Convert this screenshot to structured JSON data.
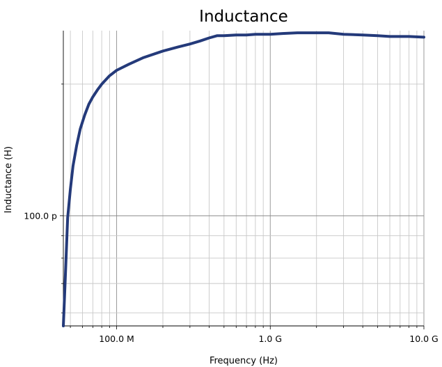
{
  "chart_data": {
    "type": "line",
    "title": "Inductance",
    "xlabel": "Frequency (Hz)",
    "ylabel": "Inductance (H)",
    "x_scale": "log",
    "y_scale": "log",
    "xlim": [
      45000000,
      10000000000
    ],
    "ylim": [
      5.6e-11,
      2.65e-10
    ],
    "grid": true,
    "x_ticks": [
      {
        "value": 100000000,
        "label": "100.0 M"
      },
      {
        "value": 1000000000,
        "label": "1.0 G"
      },
      {
        "value": 10000000000,
        "label": "10.0 G"
      }
    ],
    "y_ticks": [
      {
        "value": 1e-10,
        "label": "100.0 p"
      }
    ],
    "series": [
      {
        "color": "#243a7a",
        "x": [
          45000000,
          46500000,
          48000000,
          50000000,
          52000000,
          55000000,
          58000000,
          62000000,
          66000000,
          70000000,
          75000000,
          80000000,
          90000000,
          100000000,
          120000000,
          150000000,
          200000000,
          250000000,
          300000000,
          350000000,
          400000000,
          450000000,
          500000000,
          600000000,
          700000000,
          800000000,
          1000000000,
          1200000000,
          1500000000,
          1800000000,
          2000000000,
          2400000000,
          3000000000,
          4000000000,
          5000000000,
          6000000000,
          7000000000,
          8000000000,
          10000000000
        ],
        "y": [
          5.6e-11,
          7.4e-11,
          9.9e-11,
          1.15e-10,
          1.3e-10,
          1.45e-10,
          1.58e-10,
          1.7e-10,
          1.8e-10,
          1.87e-10,
          1.94e-10,
          2e-10,
          2.09e-10,
          2.15e-10,
          2.22e-10,
          2.3e-10,
          2.38e-10,
          2.43e-10,
          2.47e-10,
          2.51e-10,
          2.55e-10,
          2.58e-10,
          2.58e-10,
          2.59e-10,
          2.59e-10,
          2.6e-10,
          2.6e-10,
          2.61e-10,
          2.62e-10,
          2.62e-10,
          2.62e-10,
          2.62e-10,
          2.6e-10,
          2.59e-10,
          2.58e-10,
          2.57e-10,
          2.57e-10,
          2.57e-10,
          2.56e-10
        ]
      }
    ]
  }
}
